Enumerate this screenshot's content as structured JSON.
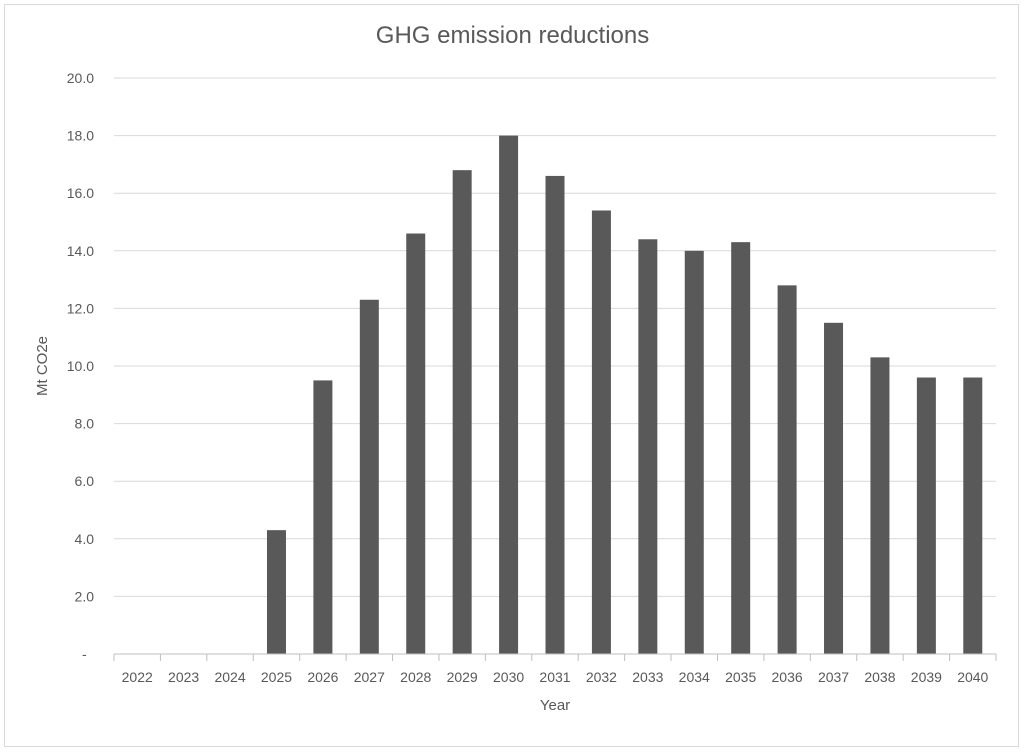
{
  "chart_data": {
    "type": "bar",
    "title": "GHG emission reductions",
    "xlabel": "Year",
    "ylabel": "Mt CO2e",
    "ylim": [
      0,
      20
    ],
    "y_ticks": [
      "-",
      "2.0",
      "4.0",
      "6.0",
      "8.0",
      "10.0",
      "12.0",
      "14.0",
      "16.0",
      "18.0",
      "20.0"
    ],
    "grid": true,
    "legend": "none",
    "categories": [
      "2022",
      "2023",
      "2024",
      "2025",
      "2026",
      "2027",
      "2028",
      "2029",
      "2030",
      "2031",
      "2032",
      "2033",
      "2034",
      "2035",
      "2036",
      "2037",
      "2038",
      "2039",
      "2040"
    ],
    "values": [
      0,
      0,
      0,
      4.3,
      9.5,
      12.3,
      14.6,
      16.8,
      18.0,
      16.6,
      15.4,
      14.4,
      14.0,
      14.3,
      12.8,
      11.5,
      10.3,
      9.6,
      9.6
    ],
    "colors": {
      "bar": "#595959",
      "grid": "#d9d9d9",
      "axis": "#bfbfbf",
      "text": "#595959"
    }
  }
}
